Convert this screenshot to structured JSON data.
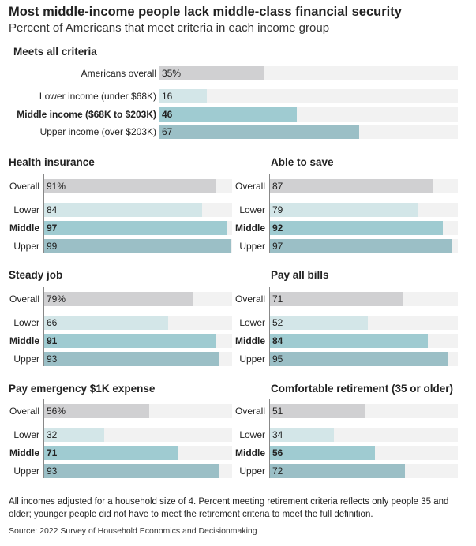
{
  "title": "Most middle-income people lack middle-class financial security",
  "subtitle": "Percent of Americans that meet criteria in each income group",
  "colors": {
    "overall": "#d0d0d2",
    "lower": "#d3e6e8",
    "middle": "#9fcbd1",
    "upper": "#9bbfc6",
    "track": "#f2f2f2"
  },
  "chart_data": [
    {
      "type": "bar",
      "title": "Meets all criteria",
      "categories": [
        "Americans overall",
        "Lower income (under $68K)",
        "Middle income ($68K to $203K)",
        "Upper income (over $203K)"
      ],
      "values": [
        35,
        16,
        46,
        67
      ],
      "value_labels": [
        "35%",
        "16",
        "46",
        "67"
      ],
      "xlim": [
        0,
        100
      ]
    },
    {
      "type": "bar",
      "title": "Health insurance",
      "categories": [
        "Overall",
        "Lower",
        "Middle",
        "Upper"
      ],
      "values": [
        91,
        84,
        97,
        99
      ],
      "value_labels": [
        "91%",
        "84",
        "97",
        "99"
      ],
      "xlim": [
        0,
        100
      ]
    },
    {
      "type": "bar",
      "title": "Able to save",
      "categories": [
        "Overall",
        "Lower",
        "Middle",
        "Upper"
      ],
      "values": [
        87,
        79,
        92,
        97
      ],
      "value_labels": [
        "87",
        "79",
        "92",
        "97"
      ],
      "xlim": [
        0,
        100
      ]
    },
    {
      "type": "bar",
      "title": "Steady job",
      "categories": [
        "Overall",
        "Lower",
        "Middle",
        "Upper"
      ],
      "values": [
        79,
        66,
        91,
        93
      ],
      "value_labels": [
        "79%",
        "66",
        "91",
        "93"
      ],
      "xlim": [
        0,
        100
      ]
    },
    {
      "type": "bar",
      "title": "Pay all bills",
      "categories": [
        "Overall",
        "Lower",
        "Middle",
        "Upper"
      ],
      "values": [
        71,
        52,
        84,
        95
      ],
      "value_labels": [
        "71",
        "52",
        "84",
        "95"
      ],
      "xlim": [
        0,
        100
      ]
    },
    {
      "type": "bar",
      "title": "Pay emergency $1K expense",
      "categories": [
        "Overall",
        "Lower",
        "Middle",
        "Upper"
      ],
      "values": [
        56,
        32,
        71,
        93
      ],
      "value_labels": [
        "56%",
        "32",
        "71",
        "93"
      ],
      "xlim": [
        0,
        100
      ]
    },
    {
      "type": "bar",
      "title": "Comfortable retirement (35 or older)",
      "categories": [
        "Overall",
        "Lower",
        "Middle",
        "Upper"
      ],
      "values": [
        51,
        34,
        56,
        72
      ],
      "value_labels": [
        "51",
        "34",
        "56",
        "72"
      ],
      "xlim": [
        0,
        100
      ]
    }
  ],
  "note": "All incomes adjusted for a household size of 4. Percent meeting retirement criteria reflects only people 35 and older; younger people did not have to meet the retirement criteria to meet the full definition.",
  "source": "Source: 2022 Survey of Household Economics and Decisionmaking"
}
